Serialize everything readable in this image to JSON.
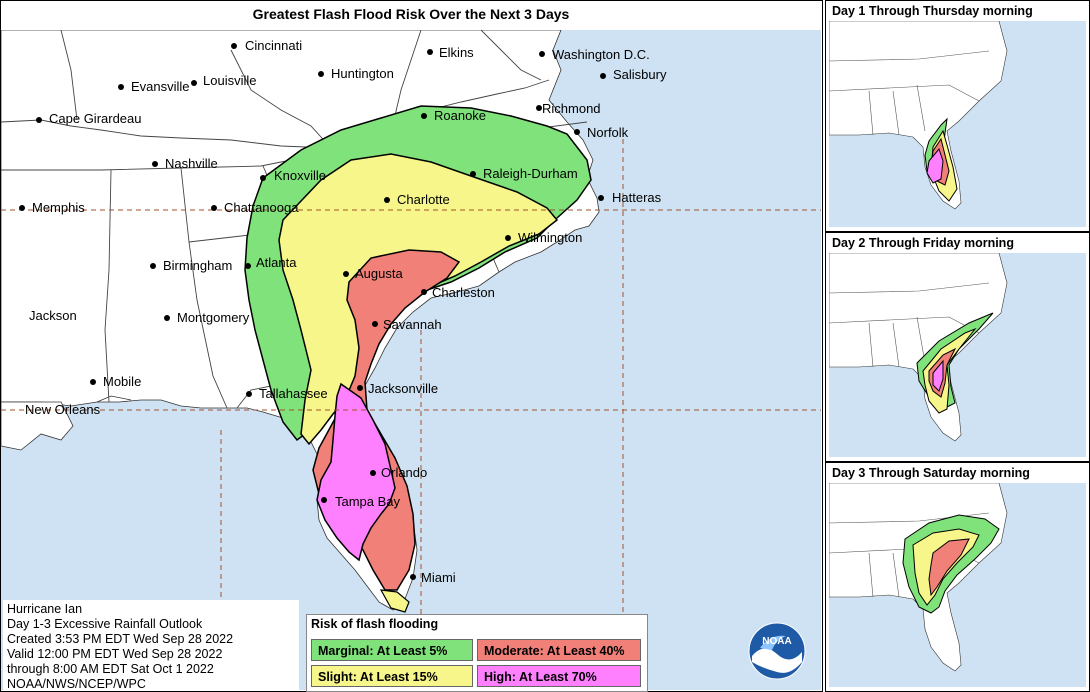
{
  "title": "Greatest Flash Flood Risk Over the Next 3 Days",
  "cities": [
    {
      "name": "Cincinnati"
    },
    {
      "name": "Elkins"
    },
    {
      "name": "Washington D.C."
    },
    {
      "name": "Evansville"
    },
    {
      "name": "Louisville"
    },
    {
      "name": "Huntington"
    },
    {
      "name": "Salisbury"
    },
    {
      "name": "Cape Girardeau"
    },
    {
      "name": "Richmond"
    },
    {
      "name": "Roanoke"
    },
    {
      "name": "Norfolk"
    },
    {
      "name": "Nashville"
    },
    {
      "name": "Knoxville"
    },
    {
      "name": "Raleigh-Durham"
    },
    {
      "name": "Memphis"
    },
    {
      "name": "Chattanooga"
    },
    {
      "name": "Charlotte"
    },
    {
      "name": "Hatteras"
    },
    {
      "name": "Wilmington"
    },
    {
      "name": "Birmingham"
    },
    {
      "name": "Atlanta"
    },
    {
      "name": "Augusta"
    },
    {
      "name": "Charleston"
    },
    {
      "name": "Jackson"
    },
    {
      "name": "Montgomery"
    },
    {
      "name": "Savannah"
    },
    {
      "name": "Mobile"
    },
    {
      "name": "Tallahassee"
    },
    {
      "name": "Jacksonville"
    },
    {
      "name": "New Orleans"
    },
    {
      "name": "Orlando"
    },
    {
      "name": "Tampa Bay"
    },
    {
      "name": "Miami"
    }
  ],
  "insets": [
    {
      "title": "Day 1 Through Thursday morning"
    },
    {
      "title": "Day 2 Through Friday morning"
    },
    {
      "title": "Day 3 Through Saturday morning"
    }
  ],
  "info": {
    "line1": "Hurricane Ian",
    "line2": "Day 1-3 Excessive Rainfall Outlook",
    "line3": "Created 3:53 PM EDT Wed Sep 28 2022",
    "line4": "Valid 12:00 PM EDT Wed Sep 28 2022",
    "line5": "through 8:00 AM EDT Sat Oct 1 2022",
    "line6": "NOAA/NWS/NCEP/WPC"
  },
  "legend": {
    "title": "Risk of flash flooding",
    "marginal": "Marginal: At Least 5%",
    "moderate": "Moderate: At Least 40%",
    "slight": "Slight: At Least 15%",
    "high": "High: At Least 70%"
  },
  "logo_text": "NOAA",
  "colors": {
    "marginal": "#80e27a",
    "slight": "#f6f68a",
    "moderate": "#f08078",
    "high": "#ff80ff",
    "water": "#cfe2f3",
    "land": "#ffffff"
  }
}
